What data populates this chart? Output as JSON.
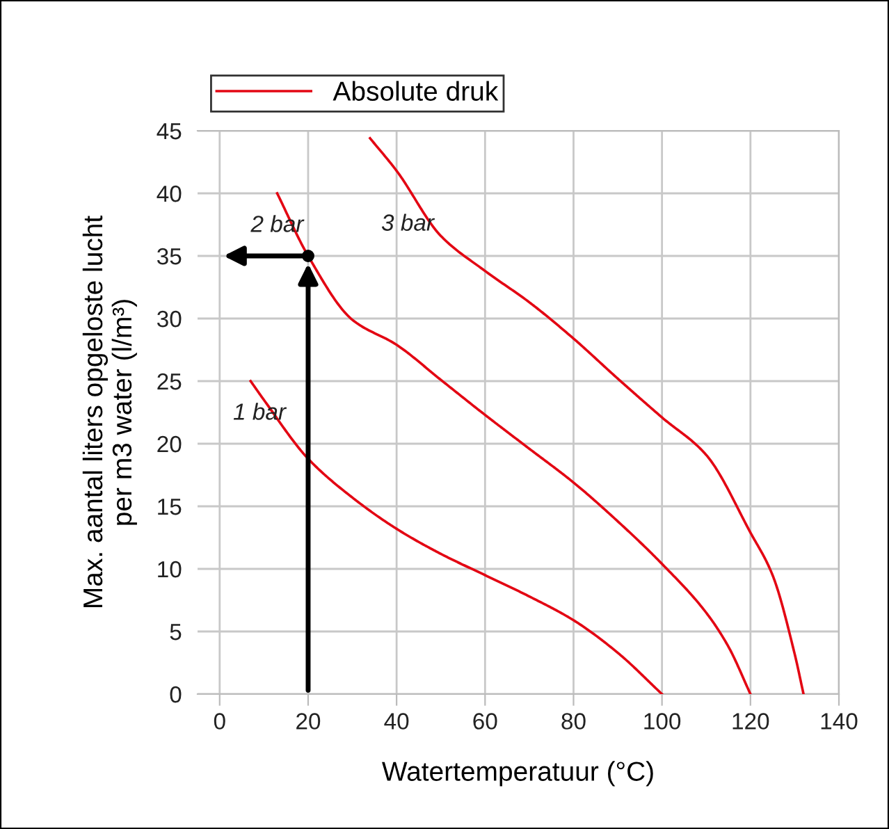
{
  "chart_data": {
    "type": "line",
    "xlabel": "Watertemperatuur (°C)",
    "ylabel": "Max. aantal liters opgeloste lucht\nper m3 water (l/m³)",
    "legend_title": "Absolute druk",
    "legend": "top left",
    "grid": true,
    "xlim": [
      -5,
      140
    ],
    "xticks": [
      0,
      20,
      40,
      60,
      80,
      100,
      120,
      140
    ],
    "ylim": [
      0,
      45
    ],
    "yticks": [
      0,
      5,
      10,
      15,
      20,
      25,
      30,
      35,
      40,
      45
    ],
    "series": [
      {
        "name": "1 bar",
        "color": "#e30613",
        "x": [
          7,
          10,
          20,
          30,
          40,
          50,
          60,
          70,
          80,
          90,
          100
        ],
        "values": [
          25,
          23.5,
          18.8,
          15.7,
          13.2,
          11.2,
          9.5,
          7.8,
          5.9,
          3.3,
          0
        ]
      },
      {
        "name": "2 bar",
        "color": "#e30613",
        "x": [
          13,
          20,
          30,
          40,
          50,
          60,
          70,
          80,
          90,
          100,
          110,
          115,
          120
        ],
        "values": [
          40,
          35,
          29.9,
          27.9,
          25.1,
          22.3,
          19.6,
          16.9,
          13.8,
          10.4,
          6.5,
          3.8,
          0
        ]
      },
      {
        "name": "3 bar",
        "color": "#e30613",
        "x": [
          34,
          40,
          50,
          60,
          70,
          80,
          90,
          100,
          110,
          120,
          125,
          130,
          132
        ],
        "values": [
          44.4,
          41.8,
          36.6,
          33.8,
          31.3,
          28.4,
          25.2,
          22.1,
          19.1,
          12.9,
          9.5,
          3.2,
          0
        ]
      },
      {
        "type": "scatter",
        "color": "#000000",
        "x": [
          20
        ],
        "values": [
          35
        ]
      }
    ]
  }
}
